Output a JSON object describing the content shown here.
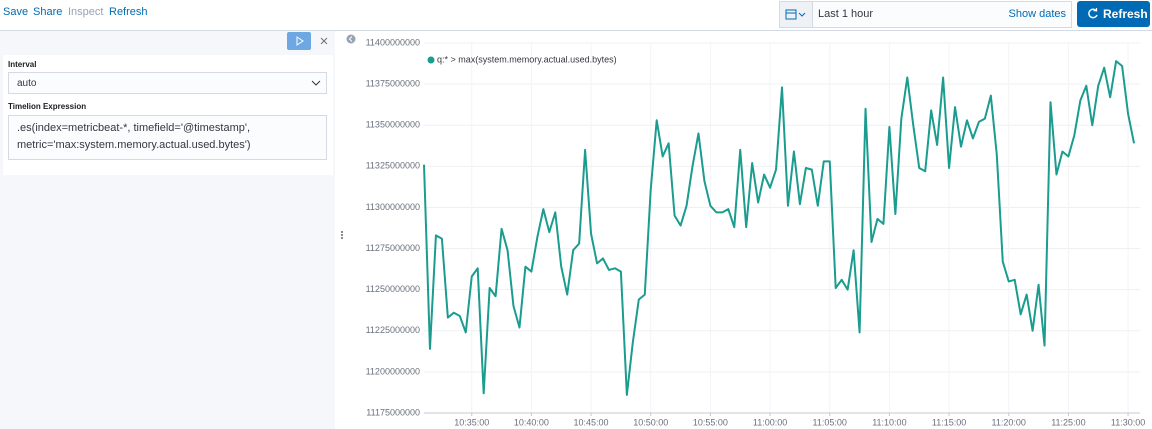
{
  "toolbar": {
    "links": [
      "Save",
      "Share",
      "Inspect",
      "Refresh"
    ],
    "time_range": "Last 1 hour",
    "show_dates": "Show dates",
    "refresh_button": "Refresh"
  },
  "editor": {
    "interval_label": "Interval",
    "interval_value": "auto",
    "expression_label": "Timelion Expression",
    "expression": ".es(index=metricbeat-*, timefield='@timestamp', metric='max:system.memory.actual.used.bytes')"
  },
  "chart_data": {
    "type": "line",
    "x": [
      "10:31:00",
      "10:31:30",
      "10:32:00",
      "10:32:30",
      "10:33:00",
      "10:33:30",
      "10:34:00",
      "10:34:30",
      "10:35:00",
      "10:35:30",
      "10:36:00",
      "10:36:30",
      "10:37:00",
      "10:37:30",
      "10:38:00",
      "10:38:30",
      "10:39:00",
      "10:39:30",
      "10:40:00",
      "10:40:30",
      "10:41:00",
      "10:41:30",
      "10:42:00",
      "10:42:30",
      "10:43:00",
      "10:43:30",
      "10:44:00",
      "10:44:30",
      "10:45:00",
      "10:45:30",
      "10:46:00",
      "10:46:30",
      "10:47:00",
      "10:47:30",
      "10:48:00",
      "10:48:30",
      "10:49:00",
      "10:49:30",
      "10:50:00",
      "10:50:30",
      "10:51:00",
      "10:51:30",
      "10:52:00",
      "10:52:30",
      "10:53:00",
      "10:53:30",
      "10:54:00",
      "10:54:30",
      "10:55:00",
      "10:55:30",
      "10:56:00",
      "10:56:30",
      "10:57:00",
      "10:57:30",
      "10:58:00",
      "10:58:30",
      "10:59:00",
      "10:59:30",
      "11:00:00",
      "11:00:30",
      "11:01:00",
      "11:01:30",
      "11:02:00",
      "11:02:30",
      "11:03:00",
      "11:03:30",
      "11:04:00",
      "11:04:30",
      "11:05:00",
      "11:05:30",
      "11:06:00",
      "11:06:30",
      "11:07:00",
      "11:07:30",
      "11:08:00",
      "11:08:30",
      "11:09:00",
      "11:09:30",
      "11:10:00",
      "11:10:30",
      "11:11:00",
      "11:11:30",
      "11:12:00",
      "11:12:30",
      "11:13:00",
      "11:13:30",
      "11:14:00",
      "11:14:30",
      "11:15:00",
      "11:15:30",
      "11:16:00",
      "11:16:30",
      "11:17:00",
      "11:17:30",
      "11:18:00",
      "11:18:30",
      "11:19:00",
      "11:19:30",
      "11:20:00",
      "11:20:30",
      "11:21:00",
      "11:21:30",
      "11:22:00",
      "11:22:30",
      "11:23:00",
      "11:23:30",
      "11:24:00",
      "11:24:30",
      "11:25:00",
      "11:25:30",
      "11:26:00",
      "11:26:30",
      "11:27:00",
      "11:27:30",
      "11:28:00",
      "11:28:30",
      "11:29:00",
      "11:29:30",
      "11:30:00",
      "11:30:30"
    ],
    "series": [
      {
        "name": "q:* > max(system.memory.actual.used.bytes)",
        "color": "#1a9c8f",
        "values": [
          11326000000,
          11214000000,
          11283000000,
          11281000000,
          11233000000,
          11236000000,
          11234000000,
          11224000000,
          11258000000,
          11263000000,
          11187000000,
          11251000000,
          11246000000,
          11287000000,
          11274000000,
          11240000000,
          11227000000,
          11264000000,
          11261000000,
          11282000000,
          11299000000,
          11285000000,
          11297000000,
          11264000000,
          11247000000,
          11274000000,
          11278000000,
          11335000000,
          11284000000,
          11266000000,
          11269000000,
          11262000000,
          11263000000,
          11261000000,
          11186000000,
          11218000000,
          11244000000,
          11247000000,
          11311000000,
          11353000000,
          11331000000,
          11339000000,
          11295000000,
          11289000000,
          11301000000,
          11325000000,
          11345000000,
          11316000000,
          11301000000,
          11297000000,
          11297000000,
          11299000000,
          11288000000,
          11335000000,
          11288000000,
          11327000000,
          11303000000,
          11320000000,
          11312000000,
          11323000000,
          11373000000,
          11301000000,
          11334000000,
          11302000000,
          11324000000,
          11323000000,
          11301000000,
          11328000000,
          11328000000,
          11251000000,
          11256000000,
          11250000000,
          11274000000,
          11224000000,
          11360000000,
          11279000000,
          11293000000,
          11290000000,
          11349000000,
          11296000000,
          11354000000,
          11379000000,
          11350000000,
          11324000000,
          11322000000,
          11359000000,
          11338000000,
          11379000000,
          11324000000,
          11361000000,
          11337000000,
          11353000000,
          11342000000,
          11352000000,
          11354000000,
          11368000000,
          11332000000,
          11267000000,
          11255000000,
          11256000000,
          11235000000,
          11247000000,
          11225000000,
          11253000000,
          11216000000,
          11364000000,
          11320000000,
          11334000000,
          11331000000,
          11344000000,
          11365000000,
          11374000000,
          11350000000,
          11374000000,
          11385000000,
          11367000000,
          11389000000,
          11386000000,
          11357000000,
          11339000000
        ]
      }
    ],
    "xlim": [
      "10:31:00",
      "11:31:00"
    ],
    "xticks": [
      "10:35:00",
      "10:40:00",
      "10:45:00",
      "10:50:00",
      "10:55:00",
      "11:00:00",
      "11:05:00",
      "11:10:00",
      "11:15:00",
      "11:20:00",
      "11:25:00",
      "11:30:00"
    ],
    "ylim": [
      11175000000,
      11400000000
    ],
    "yticks": [
      11175000000,
      11200000000,
      11225000000,
      11250000000,
      11275000000,
      11300000000,
      11325000000,
      11350000000,
      11375000000,
      11400000000
    ],
    "grid": true
  }
}
